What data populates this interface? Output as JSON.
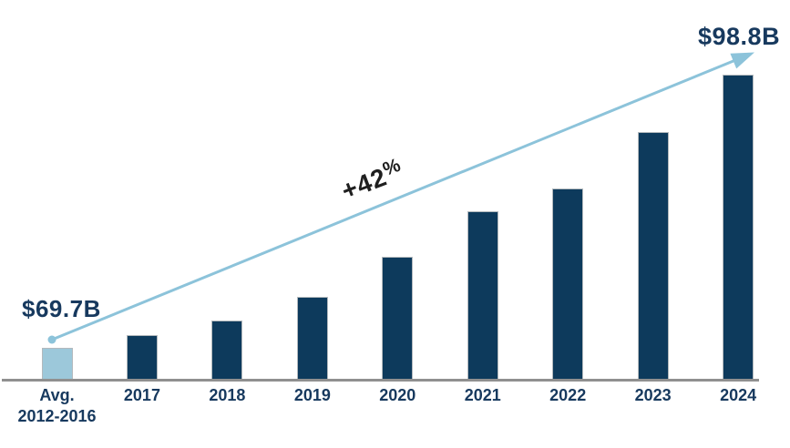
{
  "colors": {
    "background": "#ffffff",
    "bar-navy": "#0d3a5c",
    "bar-lightblue": "#9cc8da",
    "arrow-blue": "#8cc3da",
    "text-navy": "#17395e",
    "axis-gray": "#909090",
    "annotation-black": "#1f1f1f"
  },
  "chart_data": {
    "type": "bar",
    "title": "",
    "xlabel": "",
    "ylabel": "",
    "categories": [
      "Avg. 2012-2016",
      "2017",
      "2018",
      "2019",
      "2020",
      "2021",
      "2022",
      "2023",
      "2024"
    ],
    "category_display_lines": [
      [
        "Avg.",
        "2012-2016"
      ],
      [
        "2017"
      ],
      [
        "2018"
      ],
      [
        "2019"
      ],
      [
        "2020"
      ],
      [
        "2021"
      ],
      [
        "2022"
      ],
      [
        "2023"
      ],
      [
        "2024"
      ]
    ],
    "values": [
      69.7,
      71.1,
      72.6,
      75.1,
      79.4,
      84.3,
      86.7,
      92.7,
      98.8
    ],
    "value_unit": "billion USD",
    "values_note": "only first and last bars are labeled on the chart ($69.7B and $98.8B); intermediate values estimated from bar heights",
    "ylim": [
      66.3,
      100
    ],
    "y_axis_truncated": true,
    "y_axis_shown": false,
    "grid": false,
    "legend": false,
    "first_bar_highlighted": true,
    "annotations": {
      "start_value": "$69.7B",
      "end_value": "$98.8B",
      "growth_value": "+42",
      "growth_percent_sign": "%",
      "trend_arrow": "light blue arrow from top of first bar to the $98.8B value of the last bar"
    }
  }
}
